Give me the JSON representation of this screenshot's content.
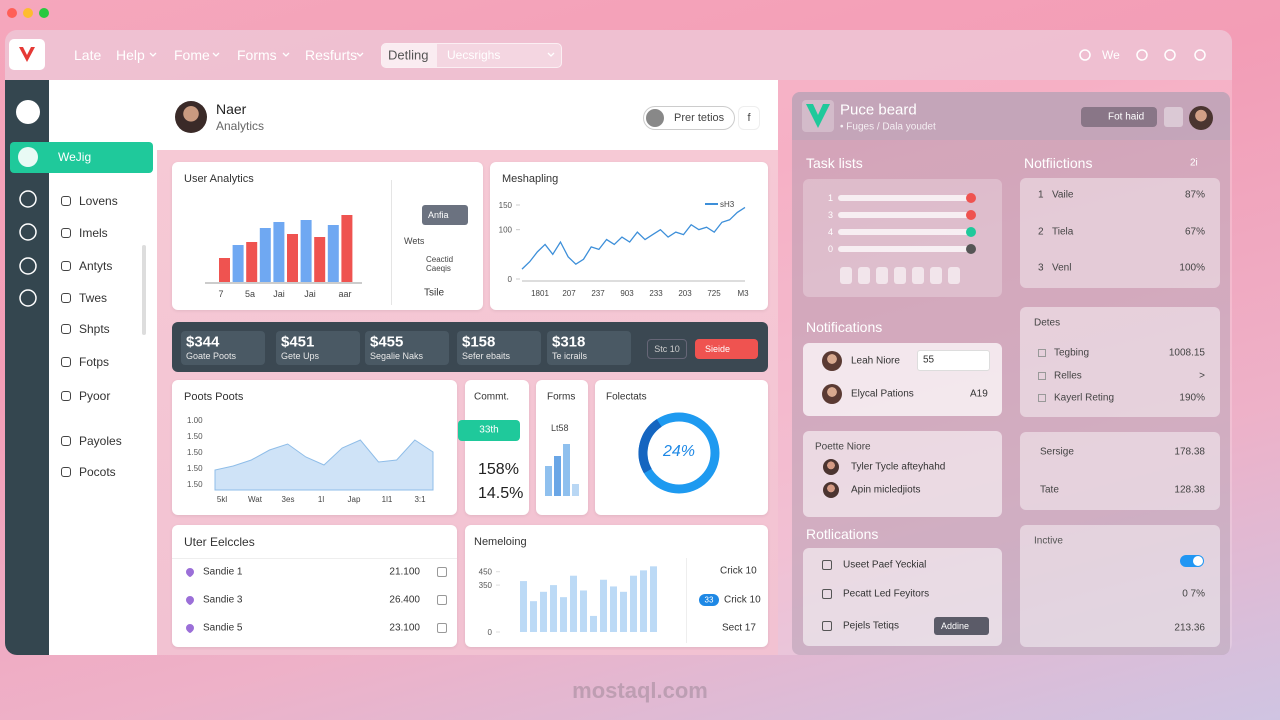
{
  "topbar": {
    "nav": [
      "Late",
      "Help",
      "Fome",
      "Forms",
      "Resfurts"
    ],
    "search_tab": "Detling",
    "search_text": "Uecsrighs",
    "user": "We"
  },
  "sidebar": {
    "active": "WeJig",
    "items": [
      "Lovens",
      "Imels",
      "Antyts",
      "Twes",
      "Shpts",
      "Fotps",
      "Pyoor",
      "Payoles",
      "Pocots"
    ]
  },
  "header": {
    "name": "Naer",
    "subtitle": "Analytics",
    "button": "Prer tetios",
    "more": "f"
  },
  "user_analytics": {
    "title": "User Analytics",
    "values": [
      24,
      37,
      40,
      54,
      60,
      48,
      62,
      45,
      57,
      67
    ],
    "colors": [
      "#ef5350",
      "#6fa8f2",
      "#ef5350",
      "#6fa8f2",
      "#6fa8f2",
      "#ef5350",
      "#6fa8f2",
      "#ef5350",
      "#6fa8f2",
      "#ef5350"
    ],
    "x_labels": [
      "7",
      "5a",
      "Jai",
      "Jai",
      "aar"
    ],
    "legend_button": "Anfia",
    "legend_items": [
      "Wets",
      "Ceactid Caeqis",
      "Tsile"
    ]
  },
  "meshapling": {
    "title": "Meshapling",
    "series_name": "sH3",
    "color": "#3d8fd9",
    "ylim": [
      0,
      150
    ],
    "yticks": [
      0,
      100,
      150
    ],
    "x_labels": [
      "1801",
      "207",
      "237",
      "903",
      "233",
      "203",
      "725",
      "M3"
    ],
    "values": [
      20,
      35,
      55,
      70,
      50,
      75,
      45,
      30,
      40,
      65,
      60,
      80,
      70,
      85,
      75,
      95,
      80,
      90,
      100,
      85,
      95,
      90,
      110,
      100,
      105,
      95,
      115,
      120,
      135,
      145
    ]
  },
  "kpis": [
    {
      "value": "$344",
      "label": "Goate Poots"
    },
    {
      "value": "$451",
      "label": "Gete Ups"
    },
    {
      "value": "$455",
      "label": "Segalie Naks"
    },
    {
      "value": "$158",
      "label": "Sefer ebaits"
    },
    {
      "value": "$318",
      "label": "Te icrails"
    }
  ],
  "kpi_buttons": [
    "Stc 10",
    "Sieide"
  ],
  "poots": {
    "title": "Poots Poots",
    "y_labels": [
      "1.00",
      "1.50",
      "1.50",
      "1.50",
      "1.50"
    ],
    "x_labels": [
      "5kl",
      "Wat",
      "3es",
      "1l",
      "Jap",
      "1l1",
      "3:1"
    ],
    "values": [
      20,
      24,
      30,
      40,
      46,
      33,
      25,
      42,
      50,
      28,
      30,
      50,
      38
    ]
  },
  "commt": {
    "title": "Commt.",
    "button": "33th",
    "stats": [
      "158%",
      "14.5%"
    ]
  },
  "forms": {
    "title": "Forms",
    "label": "Lt58",
    "values": [
      30,
      40,
      52,
      12
    ]
  },
  "folectats": {
    "title": "Folectats",
    "donut": {
      "value": 24,
      "label": "24%"
    }
  },
  "uter": {
    "title": "Uter Eelccles",
    "rows": [
      [
        "Sandie 1",
        "21.100"
      ],
      [
        "Sandie 3",
        "26.400"
      ],
      [
        "Sandie 5",
        "23.100"
      ]
    ]
  },
  "nemeloing": {
    "title": "Nemeloing",
    "ylim": [
      0,
      500
    ],
    "yticks": [
      0,
      350,
      450
    ],
    "values": [
      380,
      230,
      300,
      350,
      260,
      420,
      310,
      120,
      390,
      340,
      300,
      420,
      460,
      490
    ],
    "side": [
      "Crick 10",
      "33",
      "Crick 10",
      "Sect 17"
    ]
  },
  "right_panel": {
    "title": "Puce beard",
    "breadcrumb": "• Fuges / Dala youdet",
    "button": "Fot haid",
    "task_lists": {
      "title": "Task lists",
      "numbers": [
        "1",
        "3",
        "4",
        "0"
      ]
    },
    "notifications": {
      "title": "Notifications",
      "rows": [
        "Leah Niore",
        "Elycal Pations"
      ],
      "select": "55",
      "code": "A19"
    },
    "people": {
      "title": "Poette Niore",
      "rows": [
        "Tyler Tycle afteyhahd",
        "Apin micledjiots"
      ]
    },
    "rotlications": {
      "title": "Rotlications",
      "rows": [
        "Useet Paef Yeckial",
        "Pecatt Led Feyitors",
        "Pejels Tetiqs"
      ],
      "button": "Addine"
    },
    "notfiictions": {
      "title": "Notfiictions",
      "badge": "2i",
      "rows": [
        [
          "1",
          "Vaile",
          "87%"
        ],
        [
          "2",
          "Tiela",
          "67%"
        ],
        [
          "3",
          "Venl",
          "100%"
        ]
      ]
    },
    "detes": {
      "title": "Detes",
      "rows": [
        [
          "Tegbing",
          "1008.15"
        ],
        [
          "Relles",
          ">"
        ],
        [
          "Kayerl Reting",
          "190%"
        ]
      ]
    },
    "summary": [
      [
        "Sersige",
        "178.38"
      ],
      [
        "Tate",
        "128.38"
      ]
    ],
    "inctive": {
      "title": "Inctive",
      "rows": [
        "0 7%",
        "213.36"
      ]
    }
  },
  "watermark": "mostaql.com"
}
